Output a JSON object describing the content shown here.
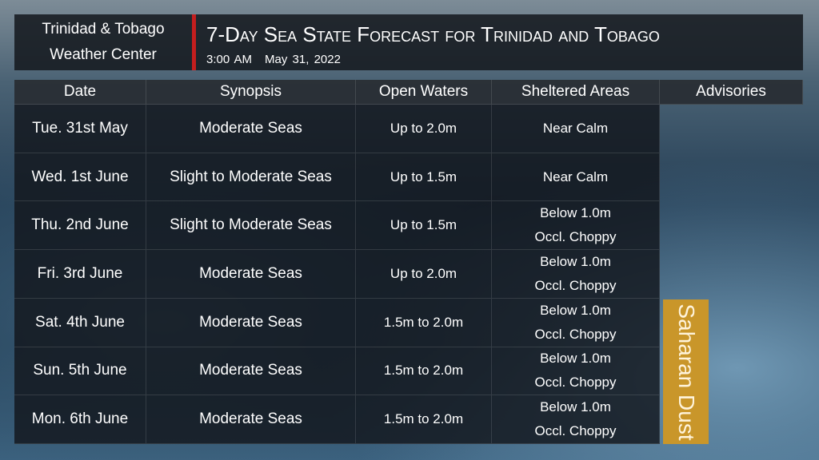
{
  "header": {
    "org": [
      "Trinidad & Tobago",
      "Weather Center"
    ],
    "title": "7-Day Sea State Forecast for Trinidad and Tobago",
    "time": "3:00 AM",
    "date": "May 31, 2022"
  },
  "table": {
    "columns": [
      "Date",
      "Synopsis",
      "Open Waters",
      "Sheltered Areas",
      "Advisories"
    ],
    "rows": [
      {
        "date": "Tue. 31st May",
        "synopsis": "Moderate Seas",
        "open_waters": "Up to 2.0m",
        "sheltered": [
          "Near Calm"
        ]
      },
      {
        "date": "Wed. 1st June",
        "synopsis": "Slight to Moderate Seas",
        "open_waters": "Up to 1.5m",
        "sheltered": [
          "Near Calm"
        ]
      },
      {
        "date": "Thu. 2nd June",
        "synopsis": "Slight to Moderate Seas",
        "open_waters": "Up to 1.5m",
        "sheltered": [
          "Below 1.0m",
          "Occl. Choppy"
        ]
      },
      {
        "date": "Fri. 3rd June",
        "synopsis": "Moderate Seas",
        "open_waters": "Up to 2.0m",
        "sheltered": [
          "Below 1.0m",
          "Occl. Choppy"
        ]
      },
      {
        "date": "Sat. 4th June",
        "synopsis": "Moderate Seas",
        "open_waters": "1.5m to 2.0m",
        "sheltered": [
          "Below 1.0m",
          "Occl. Choppy"
        ]
      },
      {
        "date": "Sun. 5th June",
        "synopsis": "Moderate Seas",
        "open_waters": "1.5m to 2.0m",
        "sheltered": [
          "Below 1.0m",
          "Occl. Choppy"
        ]
      },
      {
        "date": "Mon. 6th June",
        "synopsis": "Moderate Seas",
        "open_waters": "1.5m to 2.0m",
        "sheltered": [
          "Below 1.0m",
          "Occl. Choppy"
        ]
      }
    ],
    "advisory": "Saharan Dust"
  }
}
